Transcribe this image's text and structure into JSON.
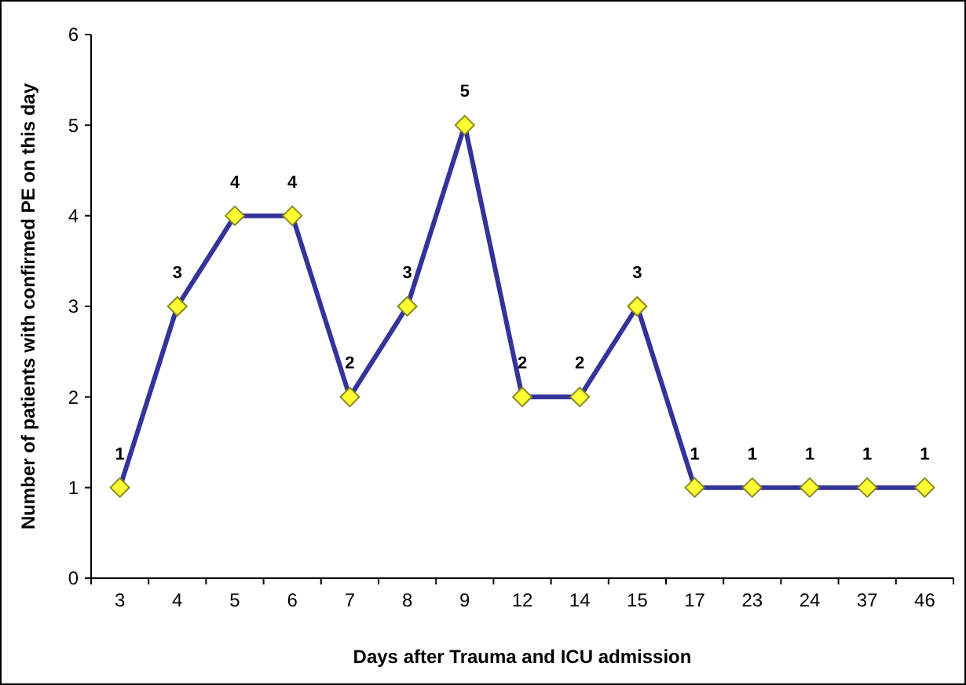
{
  "chart_data": {
    "type": "line",
    "xlabel": "Days after Trauma and ICU admission",
    "ylabel": "Number of patients with confirmed PE on this day",
    "categories": [
      "3",
      "4",
      "5",
      "6",
      "7",
      "8",
      "9",
      "12",
      "14",
      "15",
      "17",
      "23",
      "24",
      "37",
      "46"
    ],
    "series": [
      {
        "color": "#333399",
        "values": [
          1,
          3,
          4,
          4,
          2,
          3,
          5,
          2,
          2,
          3,
          1,
          1,
          1,
          1,
          1
        ]
      }
    ],
    "ylim": [
      0,
      6
    ],
    "yticks": [
      0,
      1,
      2,
      3,
      4,
      5,
      6
    ],
    "data_labels": true,
    "marker": "diamond",
    "line_style": "solid",
    "grid": false
  }
}
